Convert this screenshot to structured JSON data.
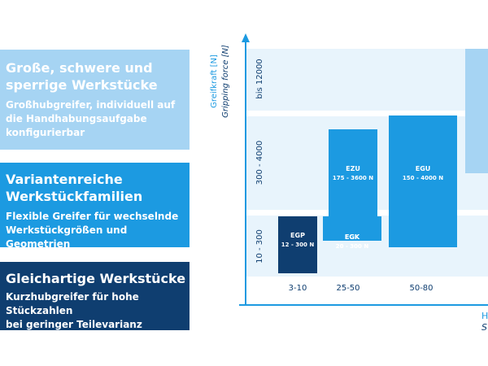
{
  "panels": {
    "large": {
      "title": "Große, schwere und\nsperrige Werkstücke",
      "subtitle": "Großhubgreifer, individuell auf\ndie Handhabungsaufgabe\nkonfigurierbar",
      "color": "#a6d4f3"
    },
    "variant": {
      "title": "Variantenreiche\nWerkstückfamilien",
      "subtitle": "Flexible Greifer für wechselnde\nWerkstückgrößen und Geometrien",
      "color": "#1c9ae1"
    },
    "uniform": {
      "title": "Gleichartige Werkstücke",
      "subtitle": "Kurzhubgreifer für hohe Stückzahlen\nbei geringer Teilevarianz",
      "color": "#0f3e70"
    }
  },
  "chart_data": {
    "type": "range-blocks",
    "ylabel": "Greifkraft [N]",
    "ylabel_en": "Gripping force [N]",
    "xlabel_partial": "H",
    "xlabel_en_partial": "S",
    "y_bands": [
      "10 - 300",
      "300 - 4000",
      "bis 12000"
    ],
    "x_categories": [
      "3-10",
      "25-50",
      "50-80"
    ],
    "products": [
      {
        "name": "EGP",
        "range": "12 - 300 N",
        "x_category": "3-10",
        "color": "#0f3e70"
      },
      {
        "name": "EGK",
        "range": "20 - 300 N",
        "x_category": "25-50",
        "color": "#1c9ae1"
      },
      {
        "name": "EZU",
        "range": "175 - 3600 N",
        "x_category": "25-50",
        "color": "#1c9ae1"
      },
      {
        "name": "EGU",
        "range": "150 - 4000 N",
        "x_category": "50-80",
        "color": "#1c9ae1"
      }
    ],
    "grid": true
  },
  "colors": {
    "axis": "#1c9ae1",
    "band": "#e8f4fc",
    "large_block": "#a6d4f3",
    "tick_text": "#0f3e70"
  }
}
